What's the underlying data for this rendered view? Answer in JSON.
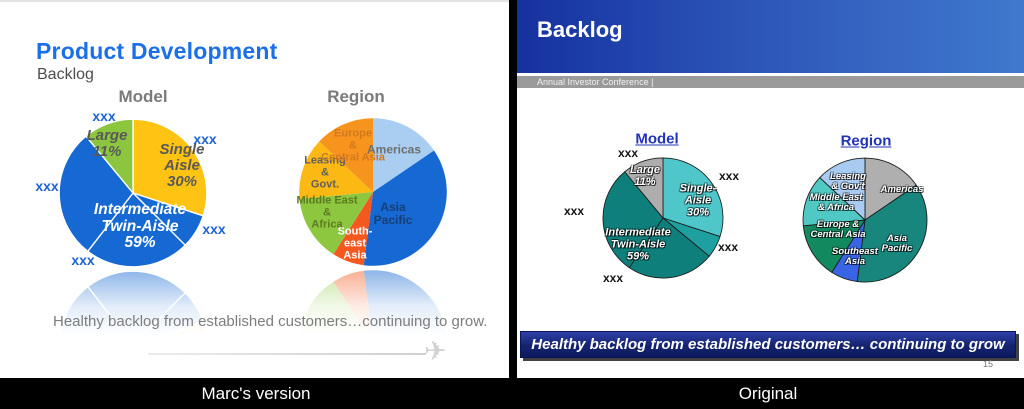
{
  "footer": {
    "left_label": "Marc's version",
    "right_label": "Original"
  },
  "left_slide": {
    "title": "Product Development",
    "subtitle": "Backlog",
    "caption": "Healthy backlog from established customers…continuing to grow.",
    "airplane_icon": "✈"
  },
  "right_slide": {
    "title": "Backlog",
    "subheader": "Annual Investor Conference |",
    "banner": "Healthy backlog from established customers… continuing to grow",
    "page_number": "15"
  },
  "colors": {
    "left_title_blue": "#1b6fe8",
    "left_callout_blue": "#1e63d4",
    "right_header_gradient": [
      "#16319f",
      "#4079ce"
    ],
    "right_banner_navy": "#16246f",
    "footer_black": "#000000"
  },
  "chart_data": [
    {
      "type": "pie",
      "title": "Model",
      "border": {
        "color": "#ffffff",
        "width": 0.9
      },
      "slices": [
        {
          "name": "Single Aisle",
          "value": 30,
          "color": "#ffc313"
        },
        {
          "name": "Intermediate Twin-Aisle (part a)",
          "value": 7.5,
          "color": "#1669d2"
        },
        {
          "name": "Intermediate Twin-Aisle (part b)",
          "value": 23,
          "color": "#1669d2"
        },
        {
          "name": "Intermediate Twin-Aisle (part c)",
          "value": 28.5,
          "color": "#1669d2"
        },
        {
          "name": "Large",
          "value": 11,
          "color": "#8cc63f"
        }
      ],
      "labels": [
        "Large\n11%",
        "Single\nAisle\n30%",
        "Intermediate\nTwin-Aisle\n59%"
      ],
      "callouts": [
        "xxx",
        "xxx",
        "xxx",
        "xxx",
        "xxx"
      ]
    },
    {
      "type": "pie",
      "title": "Region",
      "border": {
        "color": "none",
        "width": 0
      },
      "slices": [
        {
          "name": "Americas",
          "value": 15.5,
          "color": "#a9cef2"
        },
        {
          "name": "Asia Pacific",
          "value": 36.5,
          "color": "#1668d2"
        },
        {
          "name": "South-east Asia",
          "value": 7,
          "color": "#f4581f"
        },
        {
          "name": "Middle East & Africa",
          "value": 14.5,
          "color": "#8dc63f"
        },
        {
          "name": "Leasing & Govt.",
          "value": 13.5,
          "color": "#fdb913"
        },
        {
          "name": "Europe & Central Asia",
          "value": 13,
          "color": "#f7941e"
        }
      ],
      "labels": [
        "Americas",
        "Asia\nPacific",
        "South-\neast\nAsia",
        "Middle East\n&\nAfrica",
        "Leasing\n&\nGovt.",
        "Europe\n&\nCentral Asia"
      ]
    },
    {
      "type": "pie",
      "title": "Model",
      "border": {
        "color": "#1c1c1c",
        "width": 0.7
      },
      "slices": [
        {
          "name": "Single-Aisle",
          "value": 30,
          "color": "#4ec6ca"
        },
        {
          "name": "Intermediate Twin-Aisle (part a)",
          "value": 6,
          "color": "#1fa0a0"
        },
        {
          "name": "Intermediate Twin-Aisle (part b)",
          "value": 23.5,
          "color": "#0e7f7b"
        },
        {
          "name": "Intermediate Twin-Aisle (part c)",
          "value": 29.5,
          "color": "#0e7f7b"
        },
        {
          "name": "Large",
          "value": 11,
          "color": "#adadad"
        }
      ],
      "labels": [
        "Large\n11%",
        "Single-Aisle\n30%",
        "Intermediate\nTwin-Aisle\n59%"
      ],
      "callouts": [
        "xxx",
        "xxx",
        "xxx",
        "xxx",
        "xxx"
      ]
    },
    {
      "type": "pie",
      "title": "Region",
      "border": {
        "color": "#1c1c1c",
        "width": 0.7
      },
      "slices": [
        {
          "name": "Americas",
          "value": 15.5,
          "color": "#afafaf"
        },
        {
          "name": "Asia Pacific",
          "value": 36.5,
          "color": "#18867c"
        },
        {
          "name": "Southeast Asia",
          "value": 7,
          "color": "#3a64e6"
        },
        {
          "name": "Europe & Central Asia",
          "value": 14.5,
          "color": "#12895f"
        },
        {
          "name": "Middle East & Africa",
          "value": 13.5,
          "color": "#50c9c5"
        },
        {
          "name": "Leasing & Gov't",
          "value": 13,
          "color": "#a9cbf2"
        }
      ],
      "labels": [
        "Americas",
        "Asia Pacific",
        "Southeast\nAsia",
        "Europe &\nCentral Asia",
        "Middle East\n& Africa",
        "Leasing\n& Gov't"
      ]
    }
  ]
}
